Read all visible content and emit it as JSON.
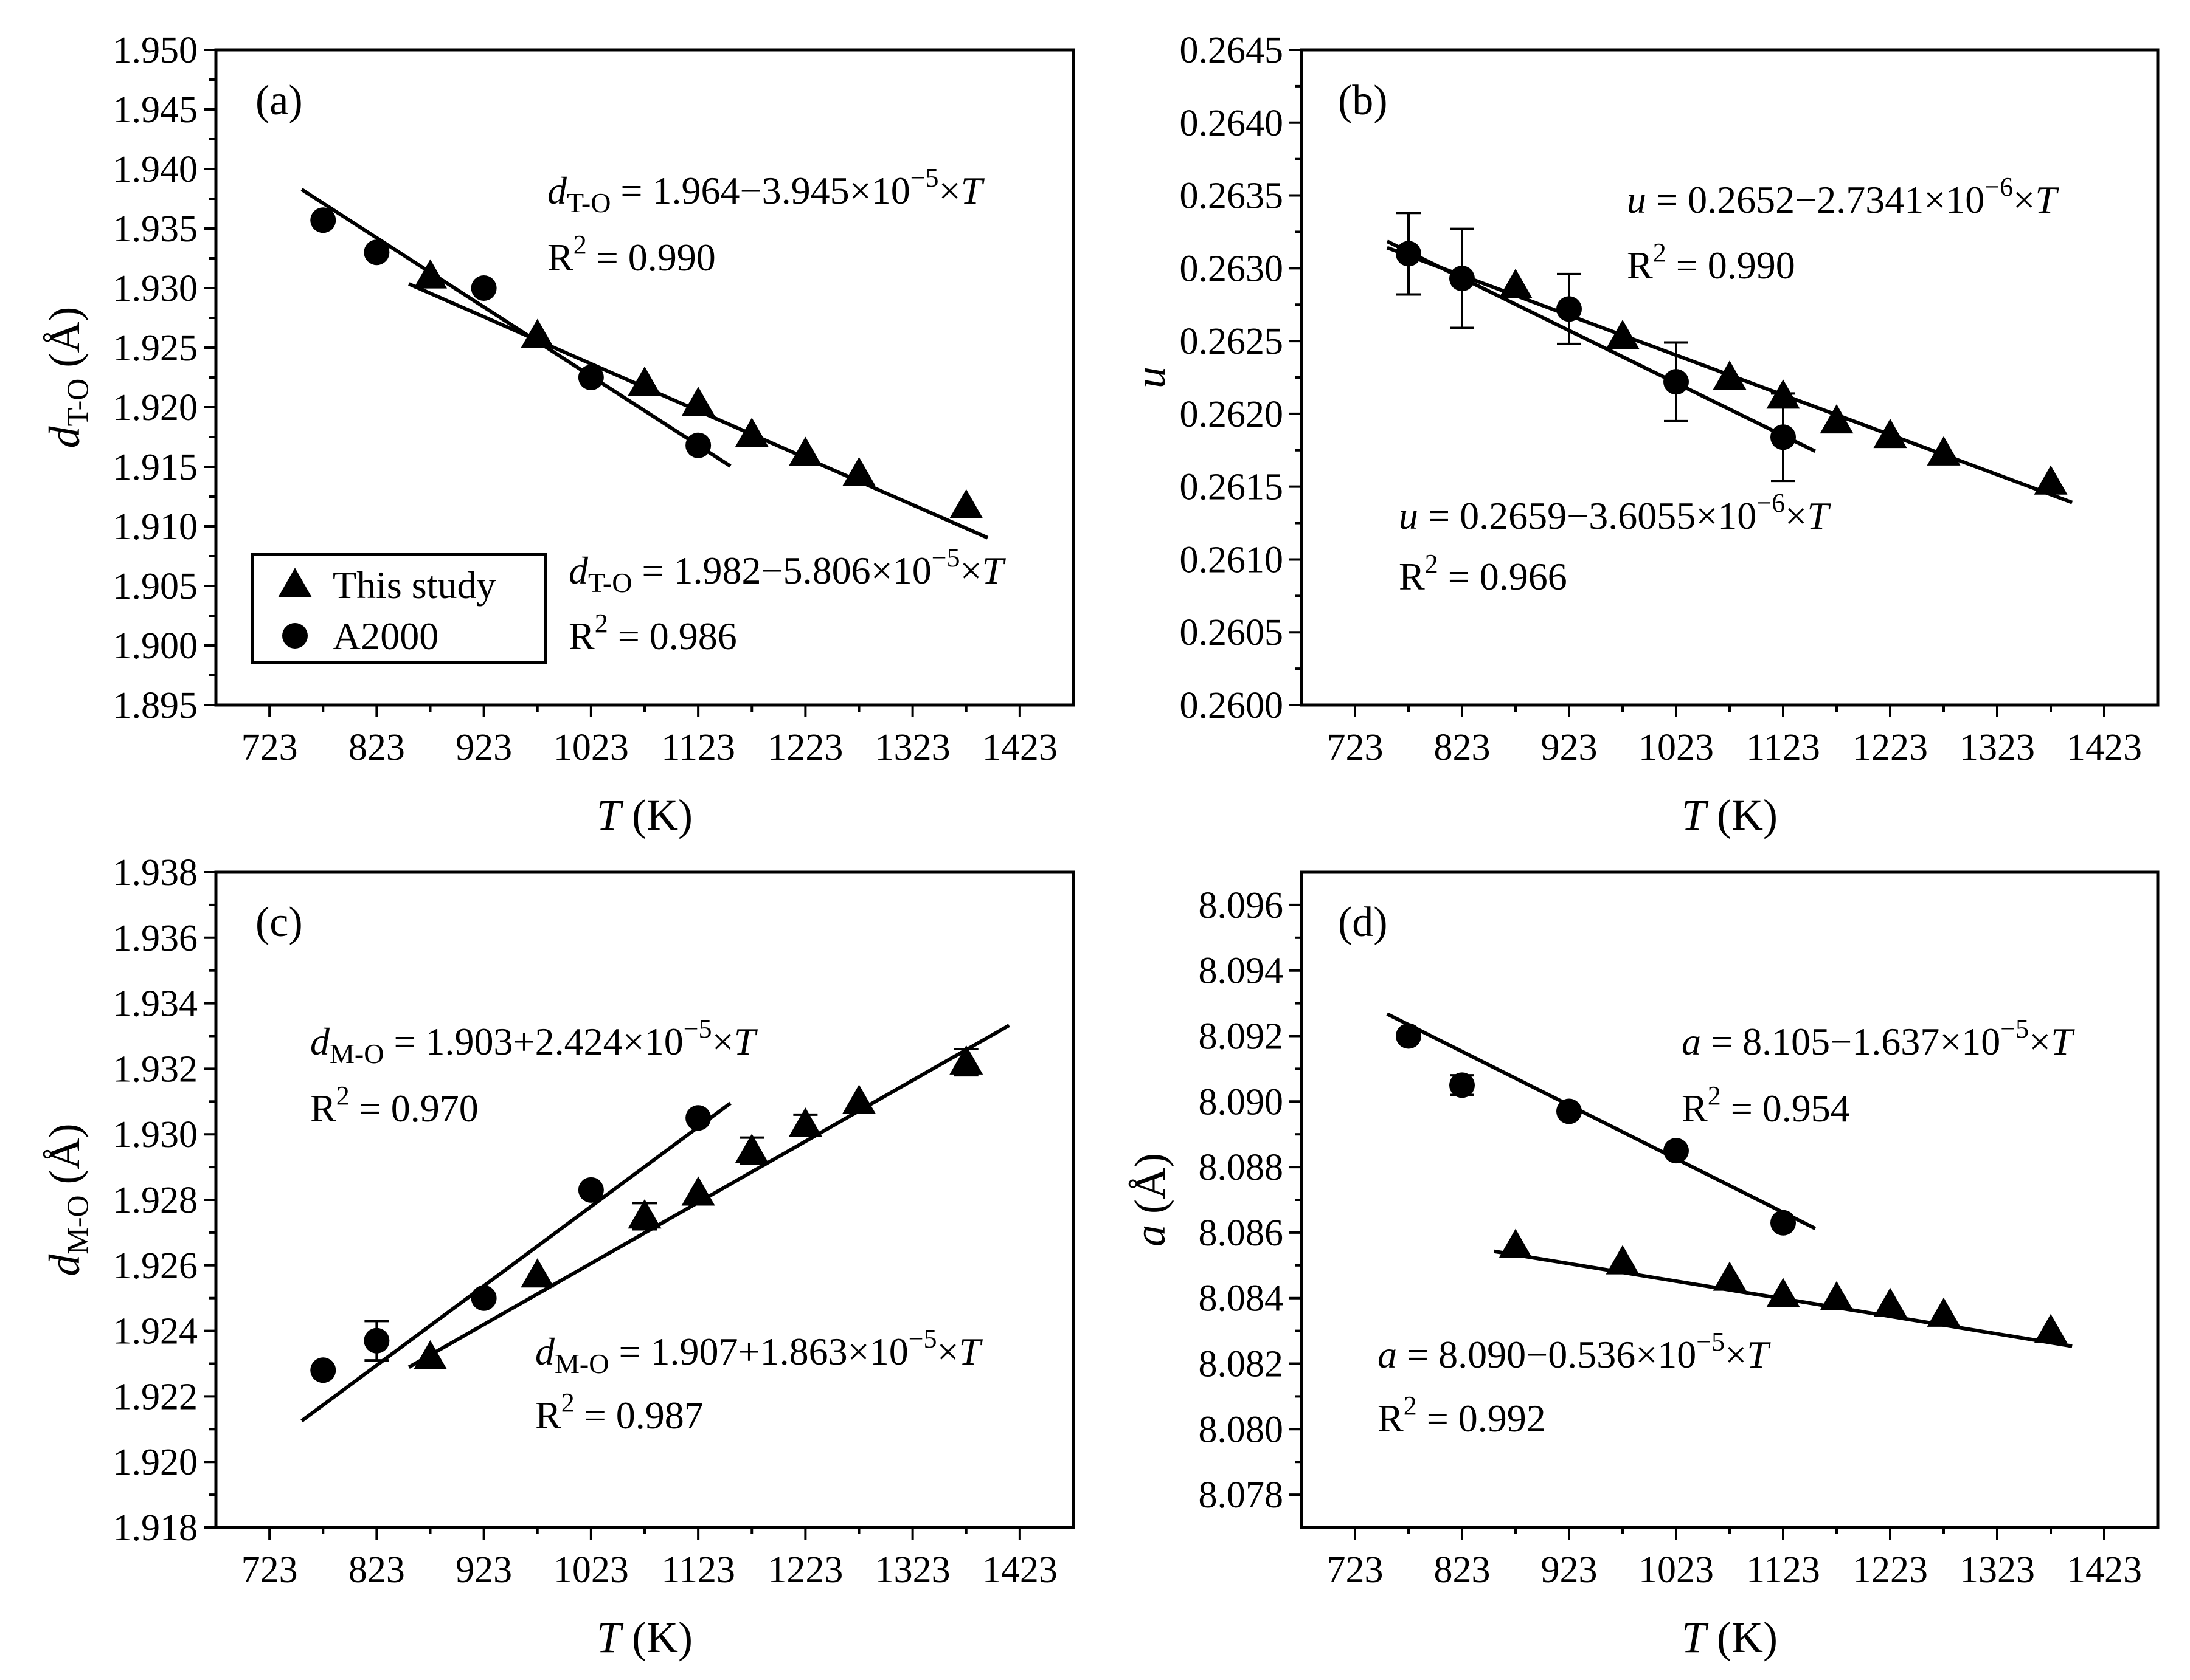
{
  "chart_data": [
    {
      "id": "a",
      "type": "scatter",
      "panel_label": "(a)",
      "xlabel": "T (K)",
      "xlabel_var": "T",
      "xlabel_unit": " (K)",
      "ylabel_var": "d",
      "ylabel_sub": "T-O",
      "ylabel_unit": " (Å)",
      "xlim": [
        673,
        1473
      ],
      "ylim": [
        1.895,
        1.95
      ],
      "xticks": [
        723,
        823,
        923,
        1023,
        1123,
        1223,
        1323,
        1423
      ],
      "xtick_labels": [
        "723",
        "823",
        "923",
        "1023",
        "1123",
        "1223",
        "1323",
        "1423"
      ],
      "yticks": [
        1.895,
        1.9,
        1.905,
        1.91,
        1.915,
        1.92,
        1.925,
        1.93,
        1.935,
        1.94,
        1.945,
        1.95
      ],
      "ytick_labels": [
        "1.895",
        "1.900",
        "1.905",
        "1.910",
        "1.915",
        "1.920",
        "1.925",
        "1.930",
        "1.935",
        "1.940",
        "1.945",
        "1.950"
      ],
      "legend": {
        "position": "bottom-left",
        "entries": [
          {
            "label": "This study",
            "marker": "triangle"
          },
          {
            "label": "A2000",
            "marker": "circle"
          }
        ]
      },
      "series": [
        {
          "name": "A2000",
          "marker": "circle",
          "x": [
            773,
            823,
            923,
            1023,
            1123
          ],
          "y": [
            1.9357,
            1.933,
            1.93,
            1.9225,
            1.9168
          ],
          "err": [
            0,
            0,
            0,
            0,
            0
          ]
        },
        {
          "name": "This study",
          "marker": "triangle",
          "x": [
            873,
            973,
            1073,
            1123,
            1173,
            1223,
            1273,
            1373
          ],
          "y": [
            1.931,
            1.926,
            1.922,
            1.9203,
            1.9177,
            1.9161,
            1.9144,
            1.9117
          ],
          "err": [
            0,
            0,
            0,
            0,
            0,
            0,
            0,
            0
          ]
        }
      ],
      "fits": [
        {
          "series": "A2000",
          "x_range": [
            753,
            1153
          ],
          "intercept": 1.982,
          "slope": -5.806e-05
        },
        {
          "series": "This study",
          "x_range": [
            853,
            1393
          ],
          "intercept": 1.964,
          "slope": -3.945e-05
        }
      ],
      "annotations": [
        {
          "var": "d",
          "sub": "T-O",
          "body": " = 1.964−3.945×10",
          "exp": "−5",
          "tail": "×",
          "tailvar": "T",
          "r2_base": "R",
          "r2_exp": "2",
          "r2_val": " = 0.990"
        },
        {
          "var": "d",
          "sub": "T-O",
          "body": " = 1.982−5.806×10",
          "exp": "−5",
          "tail": "×",
          "tailvar": "T",
          "r2_base": "R",
          "r2_exp": "2",
          "r2_val": " = 0.986"
        }
      ]
    },
    {
      "id": "b",
      "type": "scatter",
      "panel_label": "(b)",
      "xlabel": "T (K)",
      "xlabel_var": "T",
      "xlabel_unit": " (K)",
      "ylabel_var": "u",
      "ylabel_sub": "",
      "ylabel_unit": "",
      "xlim": [
        673,
        1473
      ],
      "ylim": [
        0.26,
        0.2645
      ],
      "xticks": [
        723,
        823,
        923,
        1023,
        1123,
        1223,
        1323,
        1423
      ],
      "xtick_labels": [
        "723",
        "823",
        "923",
        "1023",
        "1123",
        "1223",
        "1323",
        "1423"
      ],
      "yticks": [
        0.26,
        0.2605,
        0.261,
        0.2615,
        0.262,
        0.2625,
        0.263,
        0.2635,
        0.264,
        0.2645
      ],
      "ytick_labels": [
        "0.2600",
        "0.2605",
        "0.2610",
        "0.2615",
        "0.2620",
        "0.2625",
        "0.2630",
        "0.2635",
        "0.2640",
        "0.2645"
      ],
      "series": [
        {
          "name": "A2000",
          "marker": "circle",
          "x": [
            773,
            823,
            923,
            1023,
            1123
          ],
          "y": [
            0.2631,
            0.26293,
            0.26272,
            0.26222,
            0.26184
          ],
          "err": [
            0.00028,
            0.00034,
            0.00024,
            0.00027,
            0.0003
          ]
        },
        {
          "name": "This study",
          "marker": "triangle",
          "x": [
            873,
            973,
            1073,
            1123,
            1173,
            1223,
            1273,
            1373
          ],
          "y": [
            0.26288,
            0.26253,
            0.26225,
            0.26212,
            0.26195,
            0.26185,
            0.26173,
            0.26153
          ],
          "err": [
            0,
            0,
            0,
            0,
            0,
            0,
            0,
            0
          ]
        }
      ],
      "fits": [
        {
          "series": "A2000",
          "x_range": [
            753,
            1153
          ],
          "intercept": 0.2659,
          "slope": -3.6055e-06
        },
        {
          "series": "This study",
          "x_range": [
            753,
            1393
          ],
          "intercept": 0.2652,
          "slope": -2.7341e-06
        }
      ],
      "annotations": [
        {
          "var": "u",
          "sub": "",
          "body": " = 0.2652−2.7341×10",
          "exp": "−6",
          "tail": "×",
          "tailvar": "T",
          "r2_base": "R",
          "r2_exp": "2",
          "r2_val": " = 0.990"
        },
        {
          "var": "u",
          "sub": "",
          "body": " = 0.2659−3.6055×10",
          "exp": "−6",
          "tail": "×",
          "tailvar": "T",
          "r2_base": "R",
          "r2_exp": "2",
          "r2_val": " = 0.966"
        }
      ]
    },
    {
      "id": "c",
      "type": "scatter",
      "panel_label": "(c)",
      "xlabel": "T (K)",
      "xlabel_var": "T",
      "xlabel_unit": " (K)",
      "ylabel_var": "d",
      "ylabel_sub": "M-O",
      "ylabel_unit": " (Å)",
      "xlim": [
        673,
        1473
      ],
      "ylim": [
        1.918,
        1.938
      ],
      "xticks": [
        723,
        823,
        923,
        1023,
        1123,
        1223,
        1323,
        1423
      ],
      "xtick_labels": [
        "723",
        "823",
        "923",
        "1023",
        "1123",
        "1223",
        "1323",
        "1423"
      ],
      "yticks": [
        1.918,
        1.92,
        1.922,
        1.924,
        1.926,
        1.928,
        1.93,
        1.932,
        1.934,
        1.936,
        1.938
      ],
      "ytick_labels": [
        "1.918",
        "1.920",
        "1.922",
        "1.924",
        "1.926",
        "1.928",
        "1.930",
        "1.932",
        "1.934",
        "1.936",
        "1.938"
      ],
      "series": [
        {
          "name": "A2000",
          "marker": "circle",
          "x": [
            773,
            823,
            923,
            1023,
            1123
          ],
          "y": [
            1.9228,
            1.9237,
            1.925,
            1.9283,
            1.9305
          ],
          "err": [
            0,
            0.0006,
            0,
            0,
            0
          ]
        },
        {
          "name": "This study",
          "marker": "triangle",
          "x": [
            873,
            973,
            1073,
            1123,
            1173,
            1223,
            1273,
            1373
          ],
          "y": [
            1.9232,
            1.9257,
            1.9275,
            1.9282,
            1.9295,
            1.9303,
            1.931,
            1.9322
          ],
          "err": [
            0,
            0,
            0.0004,
            0,
            0.0004,
            0.0003,
            0,
            0.0004
          ]
        }
      ],
      "fits": [
        {
          "series": "A2000",
          "x_range": [
            753,
            1153
          ],
          "intercept": 1.903,
          "slope": 2.424e-05
        },
        {
          "series": "This study",
          "x_range": [
            853,
            1413
          ],
          "intercept": 1.907,
          "slope": 1.863e-05
        }
      ],
      "annotations": [
        {
          "var": "d",
          "sub": "M-O",
          "body": " = 1.903+2.424×10",
          "exp": "−5",
          "tail": "×",
          "tailvar": "T",
          "r2_base": "R",
          "r2_exp": "2",
          "r2_val": " = 0.970"
        },
        {
          "var": "d",
          "sub": "M-O",
          "body": " = 1.907+1.863×10",
          "exp": "−5",
          "tail": "×",
          "tailvar": "T",
          "r2_base": "R",
          "r2_exp": "2",
          "r2_val": " = 0.987"
        }
      ]
    },
    {
      "id": "d",
      "type": "scatter",
      "panel_label": "(d)",
      "xlabel": "T (K)",
      "xlabel_var": "T",
      "xlabel_unit": " (K)",
      "ylabel_var": "a",
      "ylabel_sub": "",
      "ylabel_unit": " (Å)",
      "xlim": [
        673,
        1473
      ],
      "ylim": [
        8.077,
        8.097
      ],
      "xticks": [
        723,
        823,
        923,
        1023,
        1123,
        1223,
        1323,
        1423
      ],
      "xtick_labels": [
        "723",
        "823",
        "923",
        "1023",
        "1123",
        "1223",
        "1323",
        "1423"
      ],
      "yticks": [
        8.078,
        8.08,
        8.082,
        8.084,
        8.086,
        8.088,
        8.09,
        8.092,
        8.094,
        8.096
      ],
      "ytick_labels": [
        "8.078",
        "8.080",
        "8.082",
        "8.084",
        "8.086",
        "8.088",
        "8.090",
        "8.092",
        "8.094",
        "8.096"
      ],
      "series": [
        {
          "name": "A2000",
          "marker": "circle",
          "x": [
            773,
            823,
            923,
            1023,
            1123
          ],
          "y": [
            8.092,
            8.0905,
            8.0897,
            8.0885,
            8.0863
          ],
          "err": [
            0,
            0.0003,
            0,
            0,
            0
          ]
        },
        {
          "name": "This study",
          "marker": "triangle",
          "x": [
            873,
            973,
            1073,
            1123,
            1173,
            1223,
            1273,
            1373
          ],
          "y": [
            8.0856,
            8.0851,
            8.0846,
            8.0841,
            8.084,
            8.0838,
            8.0835,
            8.083
          ],
          "err": [
            0,
            0,
            0,
            0,
            0,
            0,
            0,
            0
          ]
        }
      ],
      "fits": [
        {
          "series": "A2000",
          "x_range": [
            753,
            1153
          ],
          "intercept": 8.105,
          "slope": -1.637e-05
        },
        {
          "series": "This study",
          "x_range": [
            853,
            1393
          ],
          "intercept": 8.09,
          "slope": -5.36e-06
        }
      ],
      "annotations": [
        {
          "var": "a",
          "sub": "",
          "body": " = 8.105−1.637×10",
          "exp": "−5",
          "tail": "×",
          "tailvar": "T",
          "r2_base": "R",
          "r2_exp": "2",
          "r2_val": " = 0.954"
        },
        {
          "var": "a",
          "sub": "",
          "body": " = 8.090−0.536×10",
          "exp": "−5",
          "tail": "×",
          "tailvar": "T",
          "r2_base": "R",
          "r2_exp": "2",
          "r2_val": " = 0.992"
        }
      ]
    }
  ]
}
